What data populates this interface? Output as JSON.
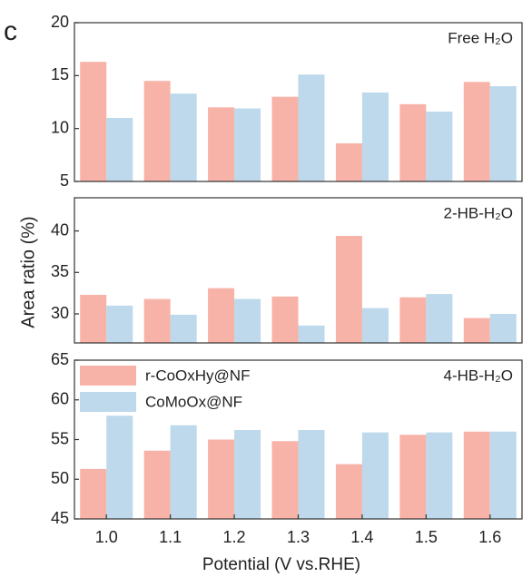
{
  "chart_data": [
    {
      "type": "bar",
      "panel_label": "c",
      "annotation": "Free H₂O",
      "ylim": [
        5,
        20
      ],
      "yticks": [
        5,
        10,
        15,
        20
      ],
      "grid": false,
      "series": [
        {
          "name": "r-CoOxHy@NF",
          "color": "#f8b3a8",
          "values": [
            16.3,
            14.5,
            12.0,
            13.0,
            8.6,
            12.3,
            14.4
          ]
        },
        {
          "name": "CoMoOx@NF",
          "color": "#bdd9eb",
          "values": [
            11.0,
            13.3,
            11.9,
            15.1,
            13.4,
            11.6,
            14.0
          ]
        }
      ]
    },
    {
      "type": "bar",
      "annotation": "2-HB-H₂O",
      "ylabel": "Area ratio (%)",
      "ylim": [
        26.5,
        44
      ],
      "yticks": [
        30,
        35,
        40
      ],
      "grid": false,
      "series": [
        {
          "name": "r-CoOxHy@NF",
          "color": "#f8b3a8",
          "values": [
            32.3,
            31.8,
            33.1,
            32.1,
            39.4,
            32.0,
            29.5
          ]
        },
        {
          "name": "CoMoOx@NF",
          "color": "#bdd9eb",
          "values": [
            31.0,
            29.9,
            31.8,
            28.6,
            30.7,
            32.4,
            30.0
          ]
        }
      ]
    },
    {
      "type": "bar",
      "annotation": "4-HB-H₂O",
      "xlabel": "Potential (V vs.RHE)",
      "legend": "upper left",
      "categories": [
        "1.0",
        "1.1",
        "1.2",
        "1.3",
        "1.4",
        "1.5",
        "1.6"
      ],
      "ylim": [
        45,
        65
      ],
      "yticks": [
        45,
        50,
        55,
        60,
        65
      ],
      "grid": false,
      "series": [
        {
          "name": "r-CoOxHy@NF",
          "color": "#f8b3a8",
          "values": [
            51.3,
            53.6,
            55.0,
            54.8,
            51.9,
            55.6,
            56.0
          ]
        },
        {
          "name": "CoMoOx@NF",
          "color": "#bdd9eb",
          "values": [
            58.0,
            56.8,
            56.2,
            56.2,
            55.9,
            55.9,
            56.0
          ]
        }
      ]
    }
  ]
}
